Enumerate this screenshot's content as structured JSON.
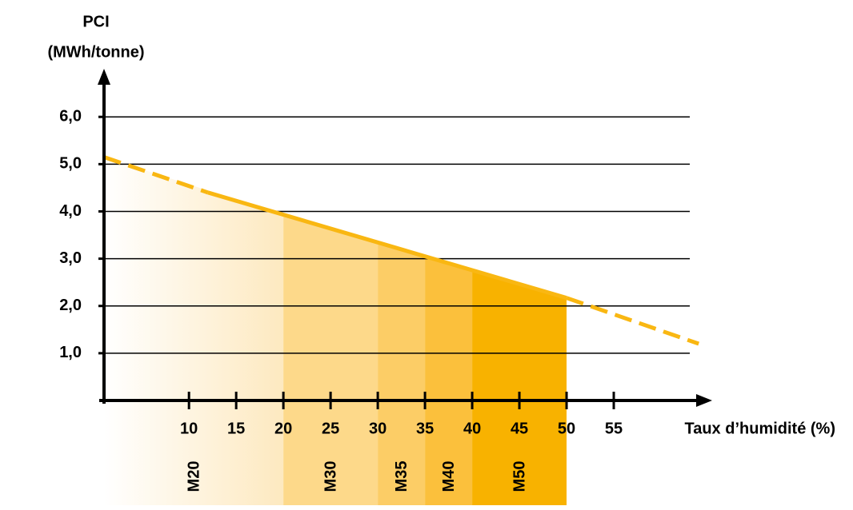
{
  "chart_data": {
    "type": "line",
    "ylabel": [
      "PCI",
      "(MWh/tonne)"
    ],
    "xlabel": "Taux d’humidité (%)",
    "xlim": [
      1,
      65
    ],
    "ylim": [
      0,
      6.9
    ],
    "xticks": [
      10,
      15,
      20,
      25,
      30,
      35,
      40,
      45,
      50,
      55
    ],
    "yticks": [
      {
        "value": 1,
        "label": "1,0"
      },
      {
        "value": 2,
        "label": "2,0"
      },
      {
        "value": 3,
        "label": "3,0"
      },
      {
        "value": 4,
        "label": "4,0"
      },
      {
        "value": 5,
        "label": "5,0"
      },
      {
        "value": 6,
        "label": "6,0"
      }
    ],
    "grid": true,
    "color": "#f9b712",
    "series": [
      {
        "x": [
          1,
          12
        ],
        "values": [
          5.15,
          4.4
        ],
        "dashed": true
      },
      {
        "x": [
          12,
          50
        ],
        "values": [
          4.4,
          2.17
        ],
        "dashed": false
      },
      {
        "x": [
          50,
          64
        ],
        "values": [
          2.17,
          1.2
        ],
        "dashed": true
      }
    ],
    "bands": [
      {
        "label": "M20",
        "from": 1,
        "to": 20,
        "color": "#fde9c0",
        "gradient": true
      },
      {
        "label": "M30",
        "from": 20,
        "to": 30,
        "color": "#fdd98a"
      },
      {
        "label": "M35",
        "from": 30,
        "to": 35,
        "color": "#fccd66"
      },
      {
        "label": "M40",
        "from": 35,
        "to": 40,
        "color": "#fbc03c"
      },
      {
        "label": "M50",
        "from": 40,
        "to": 50,
        "color": "#f8b200"
      }
    ]
  }
}
